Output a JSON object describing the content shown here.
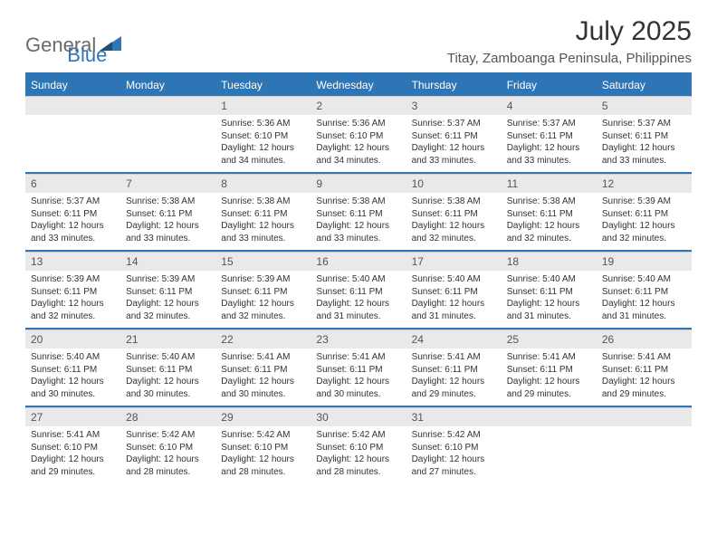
{
  "brand": {
    "word1": "General",
    "word2": "Blue"
  },
  "title": "July 2025",
  "location": "Titay, Zamboanga Peninsula, Philippines",
  "colors": {
    "accent": "#2e75b6",
    "header_text": "#ffffff",
    "daynum_bg": "#e9e9e9",
    "text": "#333333",
    "muted": "#555555"
  },
  "fonts": {
    "title_size": 30,
    "location_size": 15,
    "header_size": 12,
    "daynum_size": 12,
    "body_size": 10
  },
  "day_headers": [
    "Sunday",
    "Monday",
    "Tuesday",
    "Wednesday",
    "Thursday",
    "Friday",
    "Saturday"
  ],
  "weeks": [
    [
      null,
      null,
      {
        "n": "1",
        "sunrise": "Sunrise: 5:36 AM",
        "sunset": "Sunset: 6:10 PM",
        "daylight": "Daylight: 12 hours and 34 minutes."
      },
      {
        "n": "2",
        "sunrise": "Sunrise: 5:36 AM",
        "sunset": "Sunset: 6:10 PM",
        "daylight": "Daylight: 12 hours and 34 minutes."
      },
      {
        "n": "3",
        "sunrise": "Sunrise: 5:37 AM",
        "sunset": "Sunset: 6:11 PM",
        "daylight": "Daylight: 12 hours and 33 minutes."
      },
      {
        "n": "4",
        "sunrise": "Sunrise: 5:37 AM",
        "sunset": "Sunset: 6:11 PM",
        "daylight": "Daylight: 12 hours and 33 minutes."
      },
      {
        "n": "5",
        "sunrise": "Sunrise: 5:37 AM",
        "sunset": "Sunset: 6:11 PM",
        "daylight": "Daylight: 12 hours and 33 minutes."
      }
    ],
    [
      {
        "n": "6",
        "sunrise": "Sunrise: 5:37 AM",
        "sunset": "Sunset: 6:11 PM",
        "daylight": "Daylight: 12 hours and 33 minutes."
      },
      {
        "n": "7",
        "sunrise": "Sunrise: 5:38 AM",
        "sunset": "Sunset: 6:11 PM",
        "daylight": "Daylight: 12 hours and 33 minutes."
      },
      {
        "n": "8",
        "sunrise": "Sunrise: 5:38 AM",
        "sunset": "Sunset: 6:11 PM",
        "daylight": "Daylight: 12 hours and 33 minutes."
      },
      {
        "n": "9",
        "sunrise": "Sunrise: 5:38 AM",
        "sunset": "Sunset: 6:11 PM",
        "daylight": "Daylight: 12 hours and 33 minutes."
      },
      {
        "n": "10",
        "sunrise": "Sunrise: 5:38 AM",
        "sunset": "Sunset: 6:11 PM",
        "daylight": "Daylight: 12 hours and 32 minutes."
      },
      {
        "n": "11",
        "sunrise": "Sunrise: 5:38 AM",
        "sunset": "Sunset: 6:11 PM",
        "daylight": "Daylight: 12 hours and 32 minutes."
      },
      {
        "n": "12",
        "sunrise": "Sunrise: 5:39 AM",
        "sunset": "Sunset: 6:11 PM",
        "daylight": "Daylight: 12 hours and 32 minutes."
      }
    ],
    [
      {
        "n": "13",
        "sunrise": "Sunrise: 5:39 AM",
        "sunset": "Sunset: 6:11 PM",
        "daylight": "Daylight: 12 hours and 32 minutes."
      },
      {
        "n": "14",
        "sunrise": "Sunrise: 5:39 AM",
        "sunset": "Sunset: 6:11 PM",
        "daylight": "Daylight: 12 hours and 32 minutes."
      },
      {
        "n": "15",
        "sunrise": "Sunrise: 5:39 AM",
        "sunset": "Sunset: 6:11 PM",
        "daylight": "Daylight: 12 hours and 32 minutes."
      },
      {
        "n": "16",
        "sunrise": "Sunrise: 5:40 AM",
        "sunset": "Sunset: 6:11 PM",
        "daylight": "Daylight: 12 hours and 31 minutes."
      },
      {
        "n": "17",
        "sunrise": "Sunrise: 5:40 AM",
        "sunset": "Sunset: 6:11 PM",
        "daylight": "Daylight: 12 hours and 31 minutes."
      },
      {
        "n": "18",
        "sunrise": "Sunrise: 5:40 AM",
        "sunset": "Sunset: 6:11 PM",
        "daylight": "Daylight: 12 hours and 31 minutes."
      },
      {
        "n": "19",
        "sunrise": "Sunrise: 5:40 AM",
        "sunset": "Sunset: 6:11 PM",
        "daylight": "Daylight: 12 hours and 31 minutes."
      }
    ],
    [
      {
        "n": "20",
        "sunrise": "Sunrise: 5:40 AM",
        "sunset": "Sunset: 6:11 PM",
        "daylight": "Daylight: 12 hours and 30 minutes."
      },
      {
        "n": "21",
        "sunrise": "Sunrise: 5:40 AM",
        "sunset": "Sunset: 6:11 PM",
        "daylight": "Daylight: 12 hours and 30 minutes."
      },
      {
        "n": "22",
        "sunrise": "Sunrise: 5:41 AM",
        "sunset": "Sunset: 6:11 PM",
        "daylight": "Daylight: 12 hours and 30 minutes."
      },
      {
        "n": "23",
        "sunrise": "Sunrise: 5:41 AM",
        "sunset": "Sunset: 6:11 PM",
        "daylight": "Daylight: 12 hours and 30 minutes."
      },
      {
        "n": "24",
        "sunrise": "Sunrise: 5:41 AM",
        "sunset": "Sunset: 6:11 PM",
        "daylight": "Daylight: 12 hours and 29 minutes."
      },
      {
        "n": "25",
        "sunrise": "Sunrise: 5:41 AM",
        "sunset": "Sunset: 6:11 PM",
        "daylight": "Daylight: 12 hours and 29 minutes."
      },
      {
        "n": "26",
        "sunrise": "Sunrise: 5:41 AM",
        "sunset": "Sunset: 6:11 PM",
        "daylight": "Daylight: 12 hours and 29 minutes."
      }
    ],
    [
      {
        "n": "27",
        "sunrise": "Sunrise: 5:41 AM",
        "sunset": "Sunset: 6:10 PM",
        "daylight": "Daylight: 12 hours and 29 minutes."
      },
      {
        "n": "28",
        "sunrise": "Sunrise: 5:42 AM",
        "sunset": "Sunset: 6:10 PM",
        "daylight": "Daylight: 12 hours and 28 minutes."
      },
      {
        "n": "29",
        "sunrise": "Sunrise: 5:42 AM",
        "sunset": "Sunset: 6:10 PM",
        "daylight": "Daylight: 12 hours and 28 minutes."
      },
      {
        "n": "30",
        "sunrise": "Sunrise: 5:42 AM",
        "sunset": "Sunset: 6:10 PM",
        "daylight": "Daylight: 12 hours and 28 minutes."
      },
      {
        "n": "31",
        "sunrise": "Sunrise: 5:42 AM",
        "sunset": "Sunset: 6:10 PM",
        "daylight": "Daylight: 12 hours and 27 minutes."
      },
      null,
      null
    ]
  ]
}
